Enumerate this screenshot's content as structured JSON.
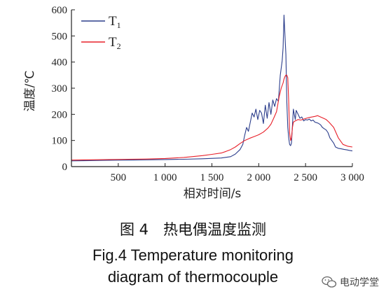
{
  "chart_data": {
    "type": "line",
    "title": "",
    "xlabel": "相对时间/s",
    "ylabel": "温度/℃",
    "xlim": [
      0,
      3000
    ],
    "ylim": [
      0,
      600
    ],
    "x_ticks": [
      {
        "value": 500,
        "label": "500"
      },
      {
        "value": 1000,
        "label": "1 000"
      },
      {
        "value": 1500,
        "label": "1 500"
      },
      {
        "value": 2000,
        "label": "2 000"
      },
      {
        "value": 2500,
        "label": "2 500"
      },
      {
        "value": 3000,
        "label": "3 000"
      }
    ],
    "y_ticks": [
      {
        "value": 0,
        "label": "0"
      },
      {
        "value": 100,
        "label": "100"
      },
      {
        "value": 200,
        "label": "200"
      },
      {
        "value": 300,
        "label": "300"
      },
      {
        "value": 400,
        "label": "400"
      },
      {
        "value": 500,
        "label": "500"
      },
      {
        "value": 600,
        "label": "600"
      }
    ],
    "grid": false,
    "legend_position": "top-left",
    "series": [
      {
        "name": "T1",
        "legend_main": "T",
        "legend_sub": "1",
        "color": "#2c3e8c",
        "x": [
          0,
          200,
          400,
          600,
          800,
          1000,
          1200,
          1400,
          1600,
          1700,
          1750,
          1800,
          1830,
          1850,
          1870,
          1890,
          1910,
          1930,
          1950,
          1970,
          1990,
          2010,
          2030,
          2050,
          2070,
          2090,
          2110,
          2130,
          2150,
          2170,
          2190,
          2210,
          2230,
          2250,
          2260,
          2270,
          2280,
          2290,
          2300,
          2310,
          2320,
          2330,
          2340,
          2350,
          2360,
          2370,
          2380,
          2390,
          2400,
          2420,
          2440,
          2460,
          2480,
          2500,
          2520,
          2540,
          2560,
          2580,
          2600,
          2620,
          2640,
          2660,
          2680,
          2700,
          2720,
          2740,
          2760,
          2780,
          2800,
          2820,
          2850,
          2880,
          2910,
          2940,
          2970,
          3000
        ],
        "values": [
          22,
          23,
          24,
          25,
          26,
          27,
          28,
          30,
          33,
          38,
          48,
          65,
          85,
          120,
          150,
          135,
          170,
          205,
          190,
          220,
          180,
          215,
          205,
          165,
          235,
          185,
          245,
          200,
          255,
          230,
          260,
          250,
          350,
          405,
          455,
          580,
          500,
          430,
          250,
          150,
          110,
          85,
          80,
          90,
          160,
          220,
          200,
          180,
          215,
          200,
          185,
          190,
          175,
          180,
          178,
          182,
          175,
          178,
          170,
          168,
          165,
          160,
          150,
          145,
          140,
          130,
          110,
          100,
          90,
          75,
          70,
          68,
          66,
          64,
          62,
          60
        ]
      },
      {
        "name": "T2",
        "legend_main": "T",
        "legend_sub": "2",
        "color": "#e8202a",
        "x": [
          0,
          200,
          400,
          600,
          800,
          1000,
          1200,
          1400,
          1500,
          1600,
          1650,
          1700,
          1750,
          1800,
          1850,
          1900,
          1950,
          2000,
          2050,
          2100,
          2130,
          2160,
          2190,
          2220,
          2240,
          2260,
          2270,
          2280,
          2290,
          2300,
          2310,
          2320,
          2330,
          2340,
          2350,
          2360,
          2370,
          2390,
          2420,
          2450,
          2480,
          2510,
          2540,
          2570,
          2600,
          2630,
          2660,
          2690,
          2720,
          2750,
          2800,
          2850,
          2900,
          2950,
          3000
        ],
        "values": [
          25,
          26,
          27,
          28,
          29,
          31,
          35,
          42,
          47,
          52,
          58,
          65,
          75,
          88,
          100,
          108,
          115,
          122,
          132,
          148,
          162,
          185,
          210,
          270,
          300,
          320,
          335,
          345,
          350,
          350,
          340,
          250,
          130,
          100,
          110,
          150,
          170,
          175,
          180,
          178,
          182,
          185,
          188,
          190,
          192,
          195,
          190,
          185,
          180,
          170,
          150,
          110,
          85,
          78,
          75
        ]
      }
    ]
  },
  "caption": {
    "cn": "图 4　热电偶温度监测",
    "en_line1": "Fig.4    Temperature monitoring",
    "en_line2": "diagram of thermocouple"
  },
  "watermark": {
    "text": "电动学堂",
    "icon": "wechat-icon"
  }
}
